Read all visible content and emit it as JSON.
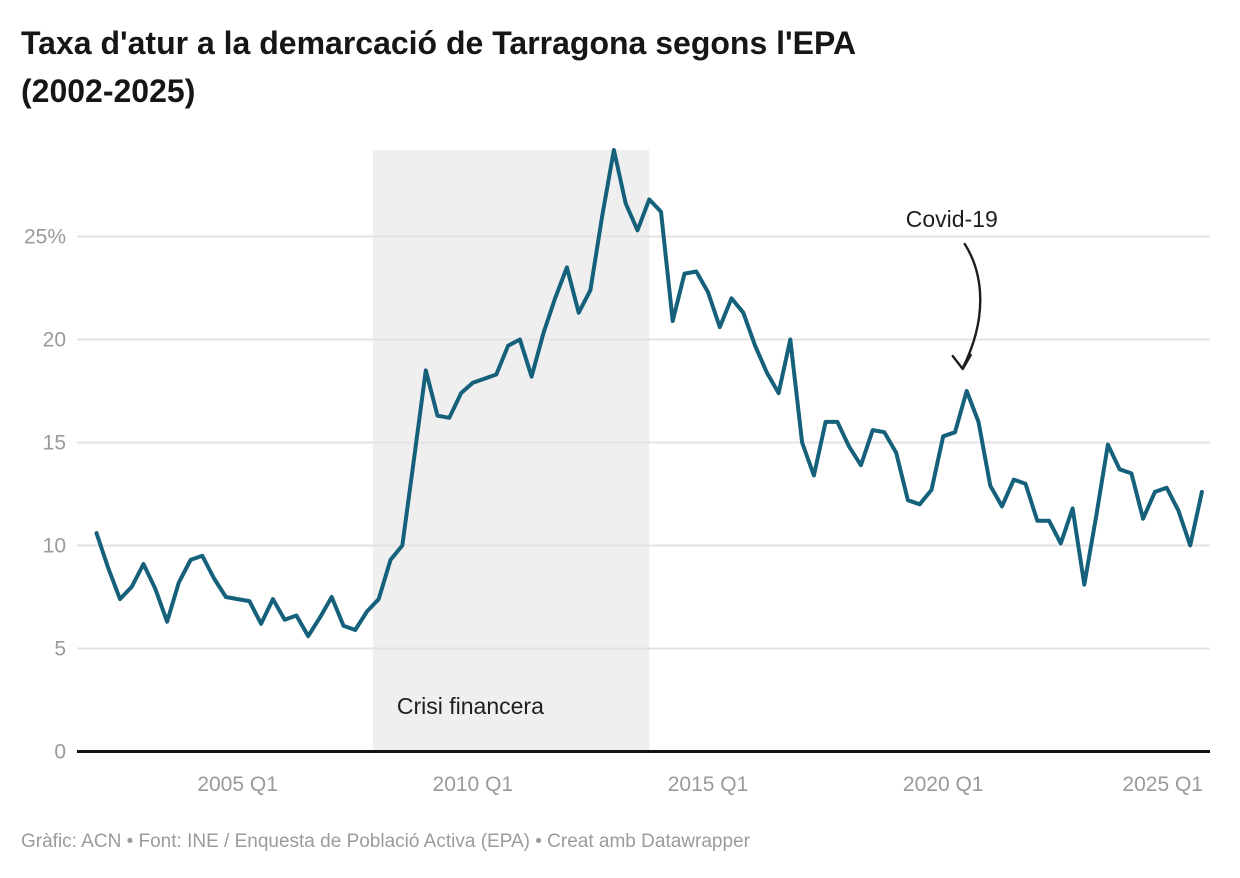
{
  "header": {
    "title": "Taxa d'atur a la demarcació de Tarragona segons l'EPA\n(2002-2025)"
  },
  "footer": {
    "credit": "Gràfic: ACN • Font: INE / Enquesta de Població Activa (EPA) • Creat amb Datawrapper"
  },
  "chart_data": {
    "type": "line",
    "title": "Taxa d'atur a la demarcació de Tarragona segons l'EPA (2002-2025)",
    "series_name": "Taxa d'atur",
    "unit": "%",
    "frequency": "quarterly",
    "x_start_year": 2002,
    "x_start_quarter": 1,
    "x_end_year": 2025,
    "x_end_quarter": 3,
    "values": [
      10.6,
      8.9,
      7.4,
      8.0,
      9.1,
      7.9,
      6.3,
      8.2,
      9.3,
      9.5,
      8.4,
      7.5,
      7.4,
      7.3,
      6.2,
      7.4,
      6.4,
      6.6,
      5.6,
      6.5,
      7.5,
      6.1,
      5.9,
      6.8,
      7.4,
      9.3,
      10.0,
      14.2,
      18.5,
      16.3,
      16.2,
      17.4,
      17.9,
      18.1,
      18.3,
      19.7,
      20.0,
      18.2,
      20.3,
      22.0,
      23.5,
      21.3,
      22.4,
      26.0,
      29.2,
      26.6,
      25.3,
      26.8,
      26.2,
      20.9,
      23.2,
      23.3,
      22.3,
      20.6,
      22.0,
      21.3,
      19.7,
      18.4,
      17.4,
      20.0,
      15.0,
      13.4,
      16.0,
      16.0,
      14.8,
      13.9,
      15.6,
      15.5,
      14.5,
      12.2,
      12.0,
      12.7,
      15.3,
      15.5,
      17.5,
      16.0,
      12.9,
      11.9,
      13.2,
      13.0,
      11.2,
      11.2,
      10.1,
      11.8,
      8.1,
      11.4,
      14.9,
      13.7,
      13.5,
      11.3,
      12.6,
      12.8,
      11.7,
      10.0,
      12.6
    ],
    "x_ticks": [
      "2005 Q1",
      "2010 Q1",
      "2015 Q1",
      "2020 Q1",
      "2025 Q1"
    ],
    "y_ticks": [
      0,
      5,
      10,
      15,
      20,
      25
    ],
    "y_top_tick_label": "25%",
    "ylim": [
      0,
      29.5
    ],
    "grid": "horizontal",
    "legend": "none",
    "line_color": "#15607a",
    "axis_color": "#131313",
    "grid_color": "#e3e3e3",
    "tick_label_color": "#9a9a9a",
    "annotation_color": "#1e1e1e",
    "band": {
      "label": "Crisi financera",
      "from": "2008 Q1",
      "to": "2013 Q4",
      "color": "#efefef"
    },
    "covid": {
      "label": "Covid-19",
      "target_quarter": "2020 Q3",
      "target_value": 17.5
    }
  }
}
